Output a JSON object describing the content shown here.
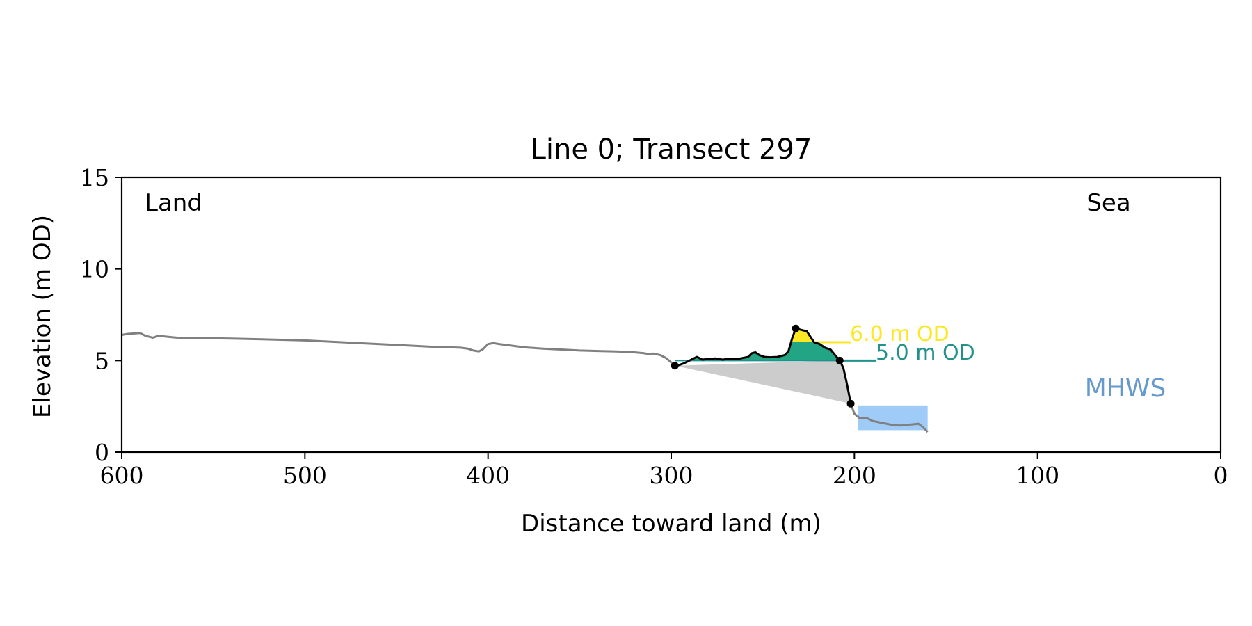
{
  "chart_data": {
    "type": "line",
    "title": "Line 0; Transect 297",
    "xlabel": "Distance toward land (m)",
    "ylabel": "Elevation (m OD)",
    "xlim": [
      600,
      0
    ],
    "ylim": [
      0,
      15
    ],
    "x_ticks": [
      600,
      500,
      400,
      300,
      200,
      100,
      0
    ],
    "y_ticks": [
      0,
      5,
      10,
      15
    ],
    "grid": false,
    "corner_labels": {
      "left": "Land",
      "right": "Sea"
    },
    "annotations": {
      "level_6": "6.0 m OD",
      "level_5": "5.0 m OD",
      "mhws": "MHWS"
    },
    "colors": {
      "profile": "#808080",
      "dune_outline": "#000000",
      "above_6m": "#fde725",
      "above_5m": "#21a585",
      "line_5m": "#21918c",
      "wedge": "#cccccc",
      "mhws_box": "#9ecbf7",
      "mhws_text": "#6699cc"
    },
    "profile": {
      "x": [
        600,
        597,
        590,
        587,
        583,
        580,
        575,
        570,
        560,
        540,
        520,
        500,
        480,
        460,
        440,
        430,
        420,
        415,
        411,
        408,
        405,
        403,
        400,
        397,
        394,
        390,
        380,
        370,
        360,
        350,
        340,
        330,
        320,
        315,
        312,
        310,
        306,
        303,
        300,
        298
      ],
      "y": [
        6.4,
        6.45,
        6.5,
        6.35,
        6.25,
        6.35,
        6.3,
        6.25,
        6.23,
        6.2,
        6.15,
        6.1,
        6.0,
        5.9,
        5.8,
        5.75,
        5.72,
        5.7,
        5.65,
        5.55,
        5.5,
        5.6,
        5.9,
        5.95,
        5.9,
        5.85,
        5.72,
        5.65,
        5.6,
        5.55,
        5.52,
        5.5,
        5.45,
        5.4,
        5.35,
        5.38,
        5.3,
        5.15,
        4.9,
        4.72
      ]
    },
    "dune_profile": {
      "x": [
        298,
        296,
        293,
        290,
        288,
        286,
        283,
        280,
        276,
        272,
        268,
        265,
        262,
        258,
        256,
        254,
        252,
        249,
        246,
        242,
        238,
        236,
        234,
        232,
        230,
        228,
        226,
        224,
        222,
        219,
        216,
        213,
        211,
        208,
        206,
        204,
        202
      ],
      "y": [
        4.72,
        4.75,
        4.85,
        5.0,
        5.1,
        5.2,
        5.05,
        5.08,
        5.12,
        5.05,
        5.1,
        5.07,
        5.12,
        5.2,
        5.4,
        5.45,
        5.3,
        5.2,
        5.18,
        5.2,
        5.3,
        5.5,
        6.2,
        6.75,
        6.7,
        6.65,
        6.6,
        6.3,
        6.0,
        5.9,
        5.7,
        5.6,
        5.35,
        5.0,
        4.6,
        3.7,
        2.65
      ]
    },
    "seaward_profile": {
      "x": [
        202,
        200,
        197,
        193,
        190,
        185,
        180,
        175,
        170,
        165,
        163,
        160
      ],
      "y": [
        2.65,
        2.1,
        1.85,
        1.85,
        1.7,
        1.6,
        1.5,
        1.45,
        1.5,
        1.55,
        1.4,
        1.1
      ]
    },
    "key_points": [
      {
        "x": 298,
        "y": 4.72
      },
      {
        "x": 232,
        "y": 6.75
      },
      {
        "x": 208,
        "y": 5.0
      },
      {
        "x": 202,
        "y": 2.65
      }
    ],
    "levels": [
      {
        "value": 6.0,
        "x_from": 222,
        "x_to": 202
      },
      {
        "value": 5.0,
        "x_from": 208,
        "x_to": 188
      }
    ],
    "mhws_region": {
      "x_from": 198,
      "x_to": 160,
      "y_from": 1.2,
      "y_to": 2.55
    }
  }
}
